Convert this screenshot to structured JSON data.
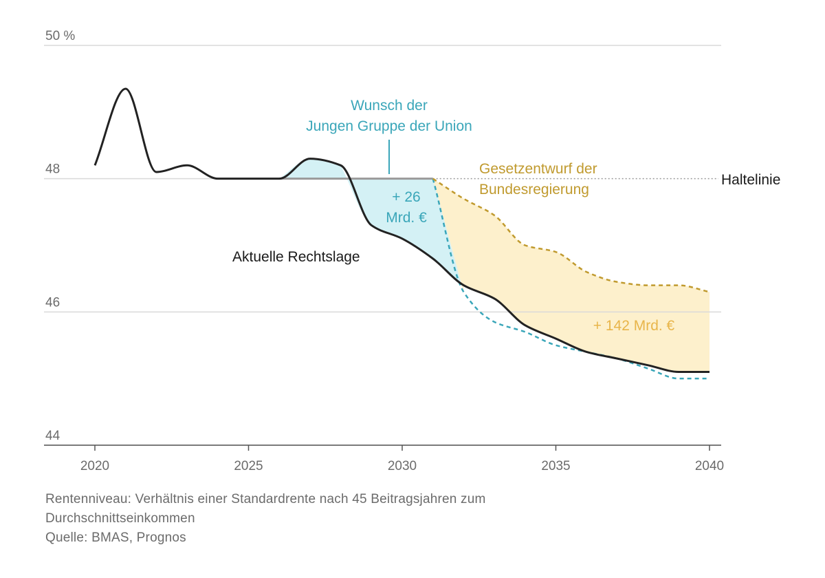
{
  "chart_data": {
    "type": "line",
    "ylim": [
      44,
      50
    ],
    "xlim": [
      2020,
      2040
    ],
    "y_ticks": [
      {
        "value": 50,
        "label": "50 %"
      },
      {
        "value": 48,
        "label": "48"
      },
      {
        "value": 46,
        "label": "46"
      },
      {
        "value": 44,
        "label": "44"
      }
    ],
    "x_ticks": [
      {
        "value": 2020,
        "label": "2020"
      },
      {
        "value": 2025,
        "label": "2025"
      },
      {
        "value": 2030,
        "label": "2030"
      },
      {
        "value": 2035,
        "label": "2035"
      },
      {
        "value": 2040,
        "label": "2040"
      }
    ],
    "grid": true,
    "haltelinie": {
      "value": 48,
      "label": "Haltelinie"
    },
    "series": [
      {
        "name": "Aktuelle Rechtslage",
        "style": "solid",
        "color": "#222222",
        "x": [
          2020,
          2021,
          2022,
          2023,
          2024,
          2025,
          2026,
          2027,
          2028,
          2029,
          2030,
          2031,
          2032,
          2033,
          2034,
          2035,
          2036,
          2037,
          2038,
          2039,
          2040
        ],
        "y": [
          48.2,
          49.35,
          48.1,
          48.2,
          48.0,
          48.0,
          48.0,
          48.3,
          48.2,
          47.3,
          47.1,
          46.8,
          46.4,
          46.2,
          45.8,
          45.6,
          45.4,
          45.3,
          45.2,
          45.1,
          45.1
        ]
      },
      {
        "name": "Wunsch der Jungen Gruppe der Union",
        "style": "dashed",
        "color": "#3aa6b9",
        "x": [
          2031,
          2032,
          2033,
          2034,
          2035,
          2036,
          2037,
          2038,
          2039,
          2040
        ],
        "y": [
          48.0,
          46.3,
          45.85,
          45.7,
          45.5,
          45.4,
          45.3,
          45.15,
          45.0,
          45.0
        ]
      },
      {
        "name": "Gesetzentwurf der Bundesregierung",
        "style": "dashed",
        "color": "#c09a2e",
        "x": [
          2031,
          2032,
          2033,
          2034,
          2035,
          2036,
          2037,
          2038,
          2039,
          2040
        ],
        "y": [
          48.0,
          47.7,
          47.45,
          47.0,
          46.9,
          46.6,
          46.45,
          46.4,
          46.4,
          46.3
        ]
      }
    ],
    "annotations": [
      {
        "text": "+ 26 Mrd. €",
        "color": "#3aa6b9"
      },
      {
        "text": "+ 142 Mrd. €",
        "color": "#e8b54a"
      }
    ]
  },
  "labels": {
    "union_line1": "Wunsch der",
    "union_line2": "Jungen Gruppe der Union",
    "regierung_line1": "Gesetzentwurf der",
    "regierung_line2": "Bundesregierung",
    "rechtslage": "Aktuelle Rechtslage",
    "haltelinie": "Haltelinie",
    "mrd26_line1": "+ 26",
    "mrd26_line2": "Mrd. €",
    "mrd142": "+ 142 Mrd. €"
  },
  "colors": {
    "union": "#3aa6b9",
    "union_fill": "#d4f1f5",
    "regierung": "#c09a2e",
    "regierung_fill": "#fdf0cc",
    "mrd142_text": "#e8b54a",
    "rechtslage": "#222222",
    "grid": "#d9d9d9",
    "haltelinie": "#9a9a9a"
  },
  "caption": {
    "line1": "Rentenniveau: Verhältnis einer Standardrente nach 45 Beitragsjahren zum",
    "line2": "Durchschnittseinkommen",
    "line3": "Quelle: BMAS, Prognos"
  }
}
